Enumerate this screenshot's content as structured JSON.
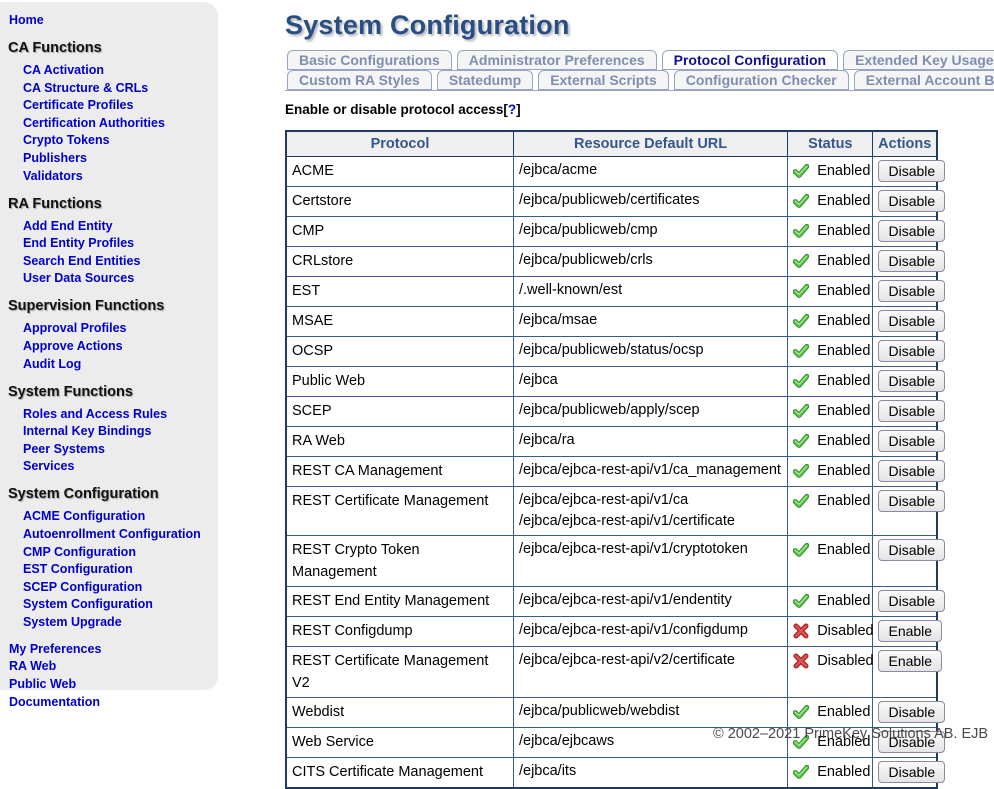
{
  "header": {
    "title": "System Configuration"
  },
  "sidebar": {
    "home": "Home",
    "sections": [
      {
        "header": "CA Functions",
        "items": [
          "CA Activation",
          "CA Structure & CRLs",
          "Certificate Profiles",
          "Certification Authorities",
          "Crypto Tokens",
          "Publishers",
          "Validators"
        ]
      },
      {
        "header": "RA Functions",
        "items": [
          "Add End Entity",
          "End Entity Profiles",
          "Search End Entities",
          "User Data Sources"
        ]
      },
      {
        "header": "Supervision Functions",
        "items": [
          "Approval Profiles",
          "Approve Actions",
          "Audit Log"
        ]
      },
      {
        "header": "System Functions",
        "items": [
          "Roles and Access Rules",
          "Internal Key Bindings",
          "Peer Systems",
          "Services"
        ]
      },
      {
        "header": "System Configuration",
        "items": [
          "ACME Configuration",
          "Autoenrollment Configuration",
          "CMP Configuration",
          "EST Configuration",
          "SCEP Configuration",
          "System Configuration",
          "System Upgrade"
        ]
      }
    ],
    "footer_links": [
      "My Preferences",
      "RA Web",
      "Public Web",
      "Documentation"
    ]
  },
  "tabs": {
    "row1": [
      {
        "label": "Basic Configurations",
        "active": false
      },
      {
        "label": "Administrator Preferences",
        "active": false
      },
      {
        "label": "Protocol Configuration",
        "active": true
      },
      {
        "label": "Extended Key Usages",
        "active": false
      }
    ],
    "row2": [
      {
        "label": "Custom RA Styles",
        "active": false
      },
      {
        "label": "Statedump",
        "active": false
      },
      {
        "label": "External Scripts",
        "active": false
      },
      {
        "label": "Configuration Checker",
        "active": false
      },
      {
        "label": "External Account Bindings",
        "active": false
      }
    ]
  },
  "intro": {
    "text": "Enable or disable protocol access",
    "bracket_open": "[",
    "help_link": "?",
    "bracket_close": "]"
  },
  "table": {
    "columns": [
      "Protocol",
      "Resource Default URL",
      "Status",
      "Actions"
    ],
    "rows": [
      {
        "protocol": "ACME",
        "urls": [
          "/ejbca/acme"
        ],
        "enabled": true,
        "status": "Enabled",
        "action": "Disable"
      },
      {
        "protocol": "Certstore",
        "urls": [
          "/ejbca/publicweb/certificates"
        ],
        "enabled": true,
        "status": "Enabled",
        "action": "Disable"
      },
      {
        "protocol": "CMP",
        "urls": [
          "/ejbca/publicweb/cmp"
        ],
        "enabled": true,
        "status": "Enabled",
        "action": "Disable"
      },
      {
        "protocol": "CRLstore",
        "urls": [
          "/ejbca/publicweb/crls"
        ],
        "enabled": true,
        "status": "Enabled",
        "action": "Disable"
      },
      {
        "protocol": "EST",
        "urls": [
          "/.well-known/est"
        ],
        "enabled": true,
        "status": "Enabled",
        "action": "Disable"
      },
      {
        "protocol": "MSAE",
        "urls": [
          "/ejbca/msae"
        ],
        "enabled": true,
        "status": "Enabled",
        "action": "Disable"
      },
      {
        "protocol": "OCSP",
        "urls": [
          "/ejbca/publicweb/status/ocsp"
        ],
        "enabled": true,
        "status": "Enabled",
        "action": "Disable"
      },
      {
        "protocol": "Public Web",
        "urls": [
          "/ejbca"
        ],
        "enabled": true,
        "status": "Enabled",
        "action": "Disable"
      },
      {
        "protocol": "SCEP",
        "urls": [
          "/ejbca/publicweb/apply/scep"
        ],
        "enabled": true,
        "status": "Enabled",
        "action": "Disable"
      },
      {
        "protocol": "RA Web",
        "urls": [
          "/ejbca/ra"
        ],
        "enabled": true,
        "status": "Enabled",
        "action": "Disable"
      },
      {
        "protocol": "REST CA Management",
        "urls": [
          "/ejbca/ejbca-rest-api/v1/ca_management"
        ],
        "enabled": true,
        "status": "Enabled",
        "action": "Disable"
      },
      {
        "protocol": "REST Certificate Management",
        "urls": [
          "/ejbca/ejbca-rest-api/v1/ca",
          "/ejbca/ejbca-rest-api/v1/certificate"
        ],
        "enabled": true,
        "status": "Enabled",
        "action": "Disable"
      },
      {
        "protocol": "REST Crypto Token Management",
        "urls": [
          "/ejbca/ejbca-rest-api/v1/cryptotoken"
        ],
        "enabled": true,
        "status": "Enabled",
        "action": "Disable"
      },
      {
        "protocol": "REST End Entity Management",
        "urls": [
          "/ejbca/ejbca-rest-api/v1/endentity"
        ],
        "enabled": true,
        "status": "Enabled",
        "action": "Disable"
      },
      {
        "protocol": "REST Configdump",
        "urls": [
          "/ejbca/ejbca-rest-api/v1/configdump"
        ],
        "enabled": false,
        "status": "Disabled",
        "action": "Enable"
      },
      {
        "protocol": "REST Certificate Management V2",
        "urls": [
          "/ejbca/ejbca-rest-api/v2/certificate"
        ],
        "enabled": false,
        "status": "Disabled",
        "action": "Enable"
      },
      {
        "protocol": "Webdist",
        "urls": [
          "/ejbca/publicweb/webdist"
        ],
        "enabled": true,
        "status": "Enabled",
        "action": "Disable"
      },
      {
        "protocol": "Web Service",
        "urls": [
          "/ejbca/ejbcaws"
        ],
        "enabled": true,
        "status": "Enabled",
        "action": "Disable"
      },
      {
        "protocol": "CITS Certificate Management",
        "urls": [
          "/ejbca/its"
        ],
        "enabled": true,
        "status": "Enabled",
        "action": "Disable"
      }
    ]
  },
  "icons": {
    "enabled": "check-icon",
    "disabled": "cross-icon"
  },
  "footer": {
    "copyright": "© 2002–2021 PrimeKey Solutions AB. EJB"
  },
  "colors": {
    "title_blue": "#2A4E82",
    "link_blue": "#0000CC",
    "tab_inactive_text": "#7E8EB0",
    "tab_active_text": "#10108E",
    "table_border": "#1F3A63",
    "table_header_text": "#33568E",
    "enabled_green": "#55B948",
    "disabled_red": "#D23B3B",
    "sidebar_bg": "#ECECEC"
  }
}
